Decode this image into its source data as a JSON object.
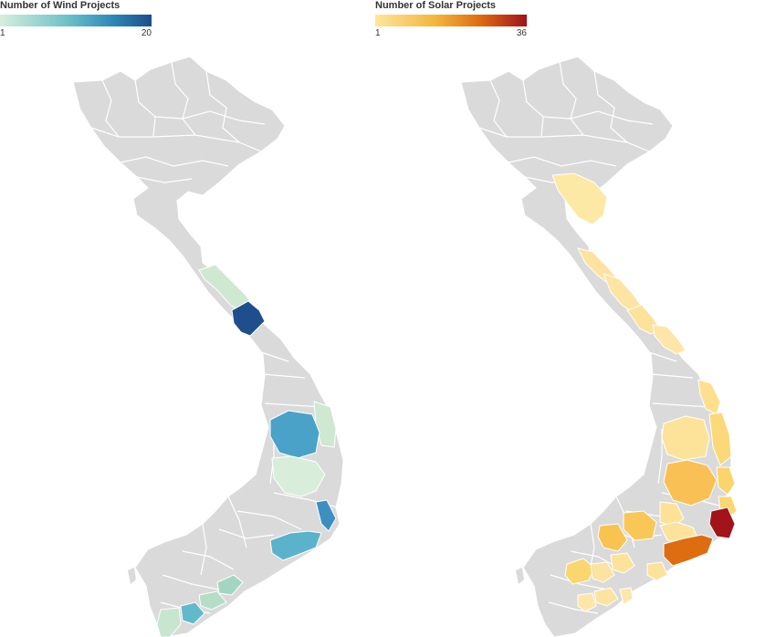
{
  "wind_legend": {
    "title": "Number of Wind Projects",
    "min_label": "1",
    "max_label": "20",
    "color_low": "#d6efdc",
    "color_high": "#1c4e8c"
  },
  "solar_legend": {
    "title": "Number of Solar Projects",
    "min_label": "1",
    "max_label": "36",
    "color_low": "#fde79a",
    "color_high": "#a0121b"
  },
  "colors": {
    "no_data": "#dadada",
    "border": "#ffffff"
  }
}
